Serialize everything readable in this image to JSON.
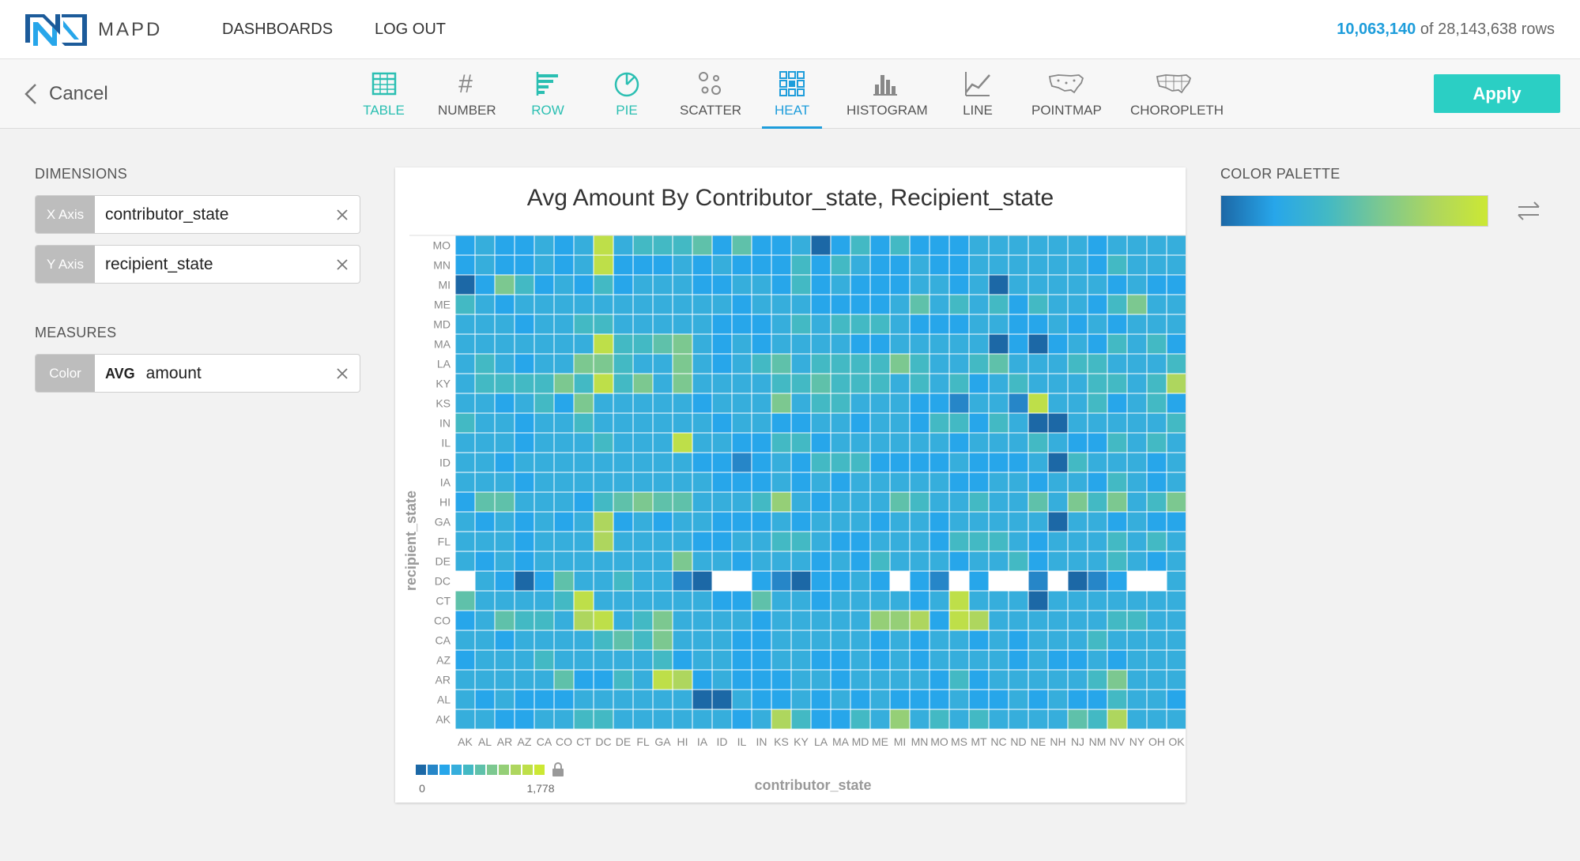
{
  "app": {
    "brand": "MAPD",
    "nav": [
      "DASHBOARDS",
      "LOG OUT"
    ],
    "rows_filtered": "10,063,140",
    "rows_total_text": "of 28,143,638 rows"
  },
  "toolbar": {
    "cancel_label": "Cancel",
    "apply_label": "Apply",
    "chart_types": [
      "TABLE",
      "NUMBER",
      "ROW",
      "PIE",
      "SCATTER",
      "HEAT",
      "HISTOGRAM",
      "LINE",
      "POINTMAP",
      "CHOROPLETH"
    ],
    "active_type": "HEAT"
  },
  "dimensions": {
    "label": "DIMENSIONS",
    "x_axis": {
      "tag": "X Axis",
      "value": "contributor_state"
    },
    "y_axis": {
      "tag": "Y Axis",
      "value": "recipient_state"
    }
  },
  "measures": {
    "label": "MEASURES",
    "color": {
      "tag": "Color",
      "agg": "AVG",
      "value": "amount"
    }
  },
  "palette": {
    "label": "COLOR PALETTE",
    "colors": [
      "#1c68a6",
      "#27a6ea",
      "#43b9c4",
      "#7cc890",
      "#aed65e",
      "#cce834"
    ]
  },
  "chart_data": {
    "type": "heatmap",
    "title": "Avg Amount By Contributor_state, Recipient_state",
    "xlabel": "contributor_state",
    "ylabel": "recipient_state",
    "x_categories": [
      "AK",
      "AL",
      "AR",
      "AZ",
      "CA",
      "CO",
      "CT",
      "DC",
      "DE",
      "FL",
      "GA",
      "HI",
      "IA",
      "ID",
      "IL",
      "IN",
      "KS",
      "KY",
      "LA",
      "MA",
      "MD",
      "ME",
      "MI",
      "MN",
      "MO",
      "MS",
      "MT",
      "NC",
      "ND",
      "NE",
      "NH",
      "NJ",
      "NM",
      "NV",
      "NY",
      "OH",
      "OK"
    ],
    "y_categories": [
      "MO",
      "MN",
      "MI",
      "ME",
      "MD",
      "MA",
      "LA",
      "KY",
      "KS",
      "IN",
      "IL",
      "ID",
      "IA",
      "HI",
      "GA",
      "FL",
      "DE",
      "DC",
      "CT",
      "CO",
      "CA",
      "AZ",
      "AR",
      "AL",
      "AK"
    ],
    "color_scale": {
      "min": 0,
      "max": 1778,
      "min_label": "0",
      "max_label": "1,778",
      "colors": [
        "#1c68a6",
        "#2686c8",
        "#27a6ea",
        "#36aedc",
        "#43b9c4",
        "#5fc1aa",
        "#7cc890",
        "#95cf77",
        "#aed65e",
        "#bedf49",
        "#cce834"
      ]
    },
    "cells": [
      "2322323934445252230242422233333323333",
      "2322323922232322242432232233333324333",
      "0264232423332233242322233230333332322",
      "4323333333333323332222353434243324633",
      "3332334433333222343444322233223232333",
      "3333333944563232333322333330202324342",
      "3432336643363234534444643345333443334",
      "3444464946363333445444343423433344348",
      "3323426333332333634433322133193342342",
      "4332334333333233223323324424300333334",
      "3332333433393322442333333233343224343",
      "3323333333332212324442222322230433323",
      "3332333333333222323233333223323324323",
      "2553332456553334732333543343353646346",
      "3232323823233222323332332333330332322",
      "3332333833332233443223332444323334343",
      "3232333333363323332324333233423334323",
      "-320253343310--2102232-21-2--1-012--32",
      "5333349333333225332333323933303333333",
      "2354438934633332333337782983333334433",
      "3323333454633322333332323323233343333",
      "2333433333423322332232323333232232333",
      "3333352243982322233233332423333346333",
      "3232223333330032232323222322323224332",
      "3322334433333323842243734343333548333"
    ],
    "legend_min_label": "0",
    "legend_max_label": "1,778"
  }
}
